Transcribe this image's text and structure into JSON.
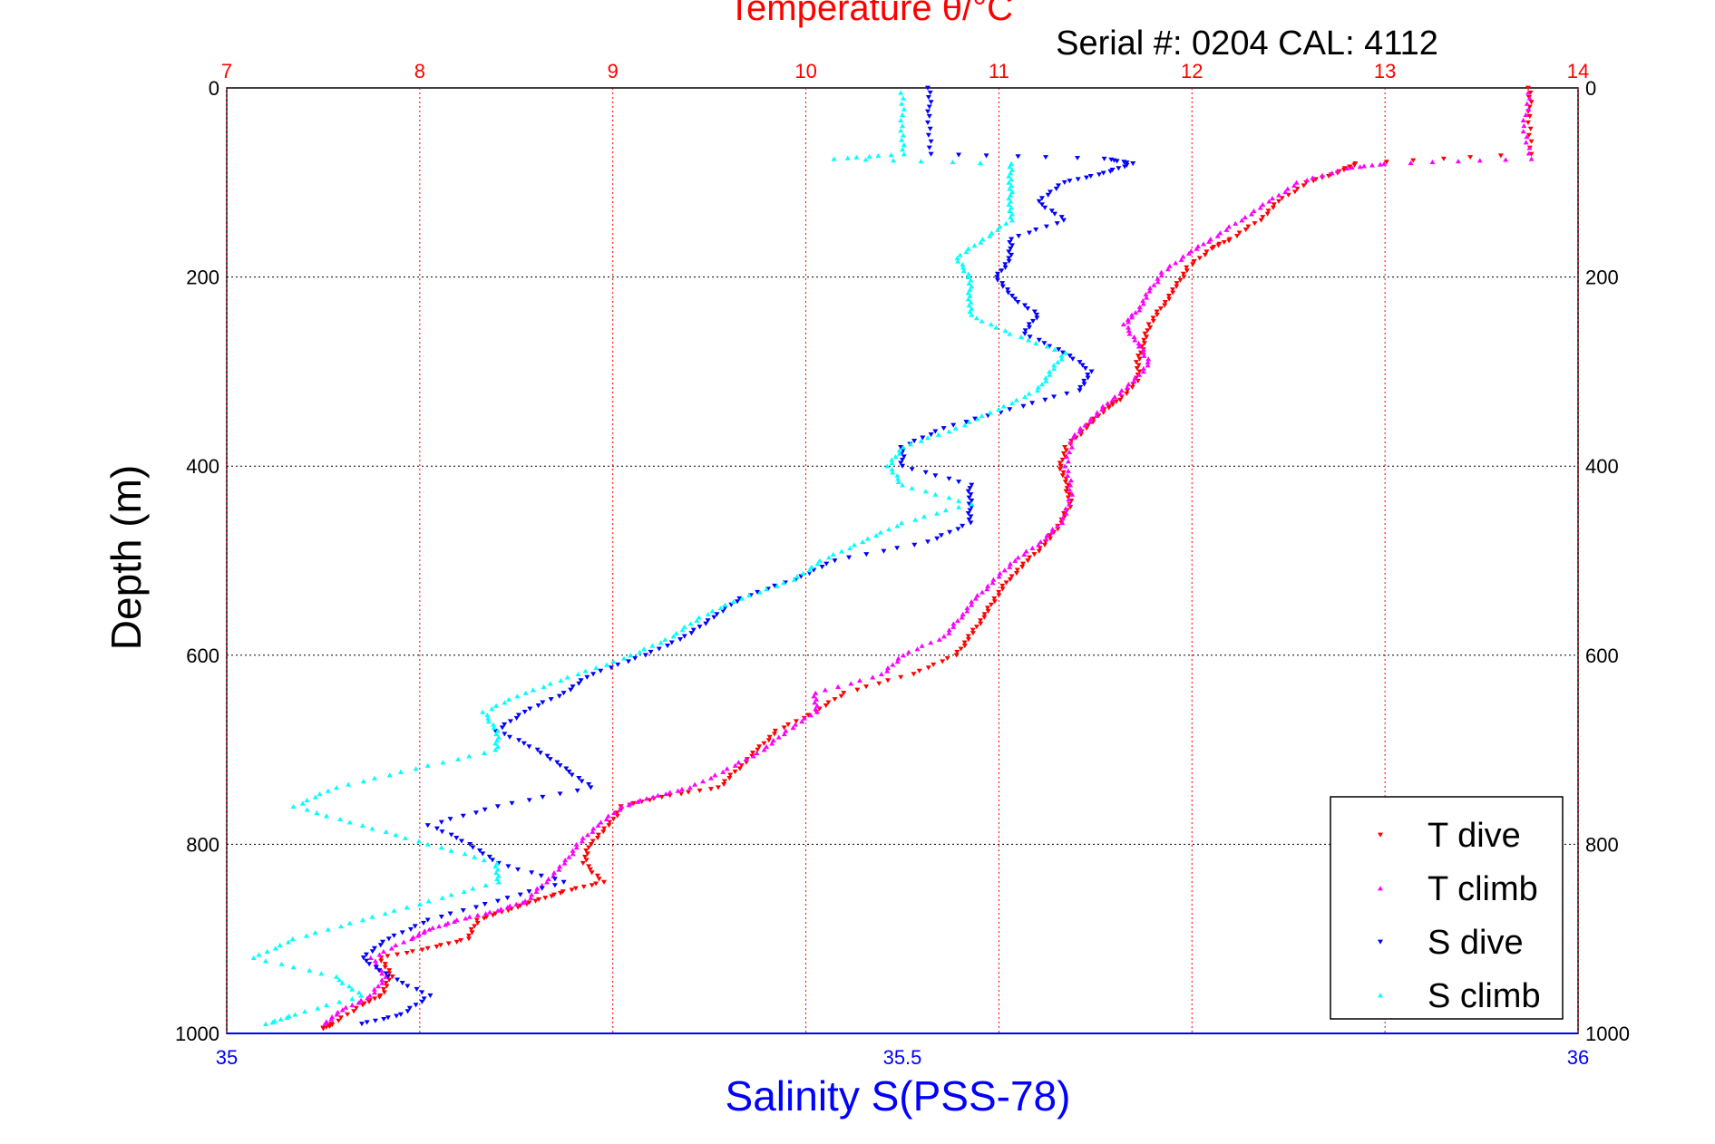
{
  "chart_data": {
    "type": "scatter",
    "title": "Temperature θ/°C",
    "subtitle": "Serial #: 0204  CAL: 4112",
    "ylabel": "Depth (m)",
    "xlabel": "Salinity S(PSS-78)",
    "y_axis": {
      "range": [
        0,
        1000
      ],
      "reversed": true,
      "ticks": [
        "0",
        "200",
        "400",
        "600",
        "800",
        "1000"
      ]
    },
    "temperature_axis": {
      "position": "top",
      "range": [
        7,
        14
      ],
      "ticks": [
        "7",
        "8",
        "9",
        "10",
        "11",
        "12",
        "13",
        "14"
      ],
      "color": "#ff0000"
    },
    "salinity_axis": {
      "position": "bottom",
      "range": [
        35,
        36
      ],
      "ticks": [
        "35",
        "35.5",
        "36"
      ],
      "color": "#0000ff"
    },
    "grid": true,
    "legend": {
      "placement": "bottom-right",
      "entries": [
        "T dive",
        "T climb",
        "S dive",
        "S climb"
      ]
    },
    "series": [
      {
        "name": "T dive",
        "axis": "temperature",
        "color": "#ff0000",
        "marker": "triangle-down",
        "points": [
          [
            13.75,
            0
          ],
          [
            13.75,
            30
          ],
          [
            13.75,
            70
          ],
          [
            12.85,
            80
          ],
          [
            12.75,
            90
          ],
          [
            12.6,
            100
          ],
          [
            12.45,
            120
          ],
          [
            12.35,
            140
          ],
          [
            12.2,
            160
          ],
          [
            12.1,
            170
          ],
          [
            11.98,
            190
          ],
          [
            11.92,
            210
          ],
          [
            11.85,
            230
          ],
          [
            11.78,
            250
          ],
          [
            11.75,
            270
          ],
          [
            11.72,
            290
          ],
          [
            11.72,
            310
          ],
          [
            11.62,
            330
          ],
          [
            11.55,
            340
          ],
          [
            11.45,
            360
          ],
          [
            11.35,
            380
          ],
          [
            11.32,
            400
          ],
          [
            11.35,
            420
          ],
          [
            11.37,
            440
          ],
          [
            11.32,
            460
          ],
          [
            11.25,
            480
          ],
          [
            11.15,
            500
          ],
          [
            11.05,
            520
          ],
          [
            10.98,
            540
          ],
          [
            10.92,
            560
          ],
          [
            10.85,
            580
          ],
          [
            10.78,
            600
          ],
          [
            10.55,
            620
          ],
          [
            10.2,
            640
          ],
          [
            10.05,
            660
          ],
          [
            9.85,
            680
          ],
          [
            9.75,
            700
          ],
          [
            9.65,
            720
          ],
          [
            9.55,
            740
          ],
          [
            9.25,
            750
          ],
          [
            9.05,
            760
          ],
          [
            8.98,
            780
          ],
          [
            8.88,
            800
          ],
          [
            8.85,
            820
          ],
          [
            8.95,
            840
          ],
          [
            8.75,
            850
          ],
          [
            8.6,
            860
          ],
          [
            8.45,
            870
          ],
          [
            8.3,
            880
          ],
          [
            8.25,
            900
          ],
          [
            8.05,
            910
          ],
          [
            7.8,
            920
          ],
          [
            7.85,
            940
          ],
          [
            7.8,
            960
          ],
          [
            7.7,
            970
          ],
          [
            7.55,
            990
          ],
          [
            7.5,
            995
          ]
        ]
      },
      {
        "name": "T climb",
        "axis": "temperature",
        "color": "#ff00ff",
        "marker": "triangle-up",
        "points": [
          [
            13.75,
            5
          ],
          [
            13.72,
            40
          ],
          [
            13.75,
            75
          ],
          [
            13.0,
            80
          ],
          [
            12.8,
            85
          ],
          [
            12.55,
            100
          ],
          [
            12.4,
            120
          ],
          [
            12.25,
            140
          ],
          [
            12.1,
            160
          ],
          [
            11.98,
            175
          ],
          [
            11.85,
            195
          ],
          [
            11.78,
            215
          ],
          [
            11.72,
            235
          ],
          [
            11.65,
            250
          ],
          [
            11.72,
            270
          ],
          [
            11.78,
            290
          ],
          [
            11.7,
            310
          ],
          [
            11.58,
            330
          ],
          [
            11.48,
            350
          ],
          [
            11.38,
            370
          ],
          [
            11.35,
            400
          ],
          [
            11.38,
            430
          ],
          [
            11.32,
            460
          ],
          [
            11.22,
            480
          ],
          [
            11.08,
            500
          ],
          [
            10.98,
            520
          ],
          [
            10.88,
            540
          ],
          [
            10.8,
            560
          ],
          [
            10.72,
            580
          ],
          [
            10.5,
            600
          ],
          [
            10.4,
            620
          ],
          [
            10.05,
            640
          ],
          [
            10.05,
            660
          ],
          [
            9.9,
            680
          ],
          [
            9.78,
            700
          ],
          [
            9.6,
            720
          ],
          [
            9.4,
            740
          ],
          [
            9.2,
            750
          ],
          [
            9.05,
            760
          ],
          [
            8.92,
            780
          ],
          [
            8.82,
            800
          ],
          [
            8.75,
            820
          ],
          [
            8.65,
            840
          ],
          [
            8.55,
            860
          ],
          [
            8.4,
            870
          ],
          [
            8.2,
            880
          ],
          [
            8.05,
            890
          ],
          [
            7.95,
            900
          ],
          [
            7.75,
            920
          ],
          [
            7.82,
            940
          ],
          [
            7.75,
            960
          ],
          [
            7.6,
            975
          ],
          [
            7.5,
            990
          ]
        ]
      },
      {
        "name": "S dive",
        "axis": "salinity",
        "color": "#0000ff",
        "marker": "triangle-down",
        "points": [
          [
            35.52,
            0
          ],
          [
            35.52,
            30
          ],
          [
            35.52,
            70
          ],
          [
            35.65,
            75
          ],
          [
            35.67,
            80
          ],
          [
            35.65,
            90
          ],
          [
            35.62,
            100
          ],
          [
            35.6,
            120
          ],
          [
            35.62,
            140
          ],
          [
            35.58,
            160
          ],
          [
            35.58,
            180
          ],
          [
            35.57,
            200
          ],
          [
            35.58,
            220
          ],
          [
            35.6,
            240
          ],
          [
            35.59,
            260
          ],
          [
            35.62,
            280
          ],
          [
            35.64,
            300
          ],
          [
            35.63,
            320
          ],
          [
            35.58,
            340
          ],
          [
            35.53,
            360
          ],
          [
            35.5,
            380
          ],
          [
            35.5,
            400
          ],
          [
            35.55,
            420
          ],
          [
            35.55,
            440
          ],
          [
            35.55,
            460
          ],
          [
            35.52,
            480
          ],
          [
            35.45,
            500
          ],
          [
            35.42,
            520
          ],
          [
            35.38,
            540
          ],
          [
            35.36,
            560
          ],
          [
            35.34,
            580
          ],
          [
            35.31,
            600
          ],
          [
            35.27,
            620
          ],
          [
            35.25,
            640
          ],
          [
            35.22,
            660
          ],
          [
            35.2,
            680
          ],
          [
            35.23,
            700
          ],
          [
            35.25,
            720
          ],
          [
            35.27,
            740
          ],
          [
            35.2,
            760
          ],
          [
            35.15,
            780
          ],
          [
            35.18,
            800
          ],
          [
            35.2,
            820
          ],
          [
            35.25,
            840
          ],
          [
            35.2,
            860
          ],
          [
            35.15,
            880
          ],
          [
            35.12,
            900
          ],
          [
            35.1,
            920
          ],
          [
            35.12,
            940
          ],
          [
            35.15,
            960
          ],
          [
            35.13,
            980
          ],
          [
            35.1,
            990
          ]
        ]
      },
      {
        "name": "S climb",
        "axis": "salinity",
        "color": "#00ffff",
        "marker": "triangle-up",
        "points": [
          [
            35.5,
            5
          ],
          [
            35.5,
            40
          ],
          [
            35.5,
            70
          ],
          [
            35.45,
            75
          ],
          [
            35.58,
            80
          ],
          [
            35.58,
            100
          ],
          [
            35.58,
            120
          ],
          [
            35.58,
            140
          ],
          [
            35.56,
            160
          ],
          [
            35.54,
            180
          ],
          [
            35.55,
            200
          ],
          [
            35.55,
            220
          ],
          [
            35.55,
            240
          ],
          [
            35.58,
            260
          ],
          [
            35.62,
            280
          ],
          [
            35.61,
            300
          ],
          [
            35.6,
            320
          ],
          [
            35.57,
            340
          ],
          [
            35.54,
            360
          ],
          [
            35.5,
            380
          ],
          [
            35.49,
            400
          ],
          [
            35.5,
            420
          ],
          [
            35.55,
            440
          ],
          [
            35.5,
            460
          ],
          [
            35.47,
            480
          ],
          [
            35.44,
            500
          ],
          [
            35.42,
            520
          ],
          [
            35.38,
            540
          ],
          [
            35.35,
            560
          ],
          [
            35.33,
            580
          ],
          [
            35.3,
            600
          ],
          [
            35.26,
            620
          ],
          [
            35.22,
            640
          ],
          [
            35.19,
            660
          ],
          [
            35.2,
            680
          ],
          [
            35.2,
            700
          ],
          [
            35.14,
            720
          ],
          [
            35.08,
            740
          ],
          [
            35.05,
            760
          ],
          [
            35.1,
            780
          ],
          [
            35.15,
            800
          ],
          [
            35.2,
            820
          ],
          [
            35.2,
            840
          ],
          [
            35.15,
            860
          ],
          [
            35.1,
            880
          ],
          [
            35.05,
            900
          ],
          [
            35.02,
            920
          ],
          [
            35.08,
            940
          ],
          [
            35.1,
            960
          ],
          [
            35.05,
            980
          ],
          [
            35.03,
            990
          ]
        ]
      }
    ]
  }
}
